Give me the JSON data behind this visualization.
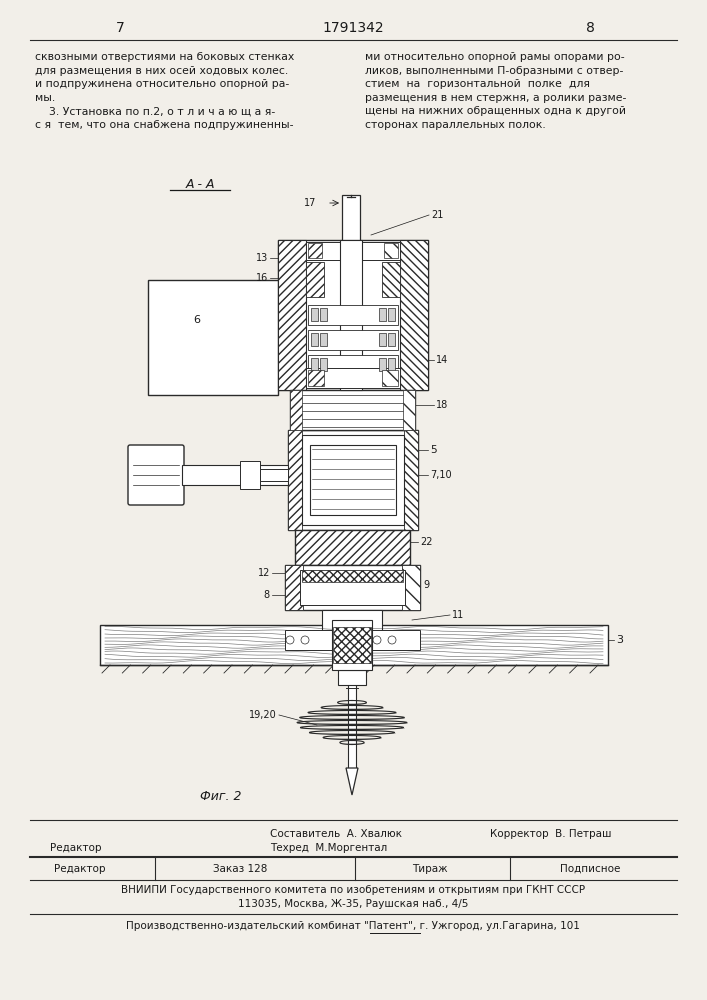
{
  "page_left": "7",
  "page_center": "1791342",
  "page_right": "8",
  "text_left_col": "сквозными отверстиями на боковых стенках\nдля размещения в них осей ходовых колес.\nи подпружинена относительно опорной ра-\nмы.\n    3. Установка по п.2, о т л и ч а ю щ а я-\nс я  тем, что она снабжена подпружиненны-",
  "text_right_col": "ми относительно опорной рамы опорами ро-\nликов, выполненными П-образными с отвер-\nстием  на  горизонтальной  полке  для\nразмещения в нем стержня, а ролики разме-\nщены на нижних обращенных одна к другой\nсторонах параллельных полок.",
  "fig_label": "Фиг. 2",
  "section_label": "А - А",
  "composer": "Составитель  А. Хвалюк",
  "techred": "Техред  М.Моргентал",
  "corrector": "Корректор  В. Петраш",
  "editor_label": "Редактор",
  "order_label": "Заказ 128",
  "tirazh_label": "Тираж",
  "podpisnoe_label": "Подписное",
  "vniippi_line1": "ВНИИПИ Государственного комитета по изобретениям и открытиям при ГКНТ СССР",
  "vniippi_line2": "113035, Москва, Ж-35, Раушская наб., 4/5",
  "producer": "Производственно-издательский комбинат \"Патент\", г. Ужгород, ул.Гагарина, 101",
  "bg_color": "#f2efe9",
  "text_color": "#1a1a1a",
  "line_color": "#2a2a2a",
  "hatch_color": "#2a2a2a"
}
